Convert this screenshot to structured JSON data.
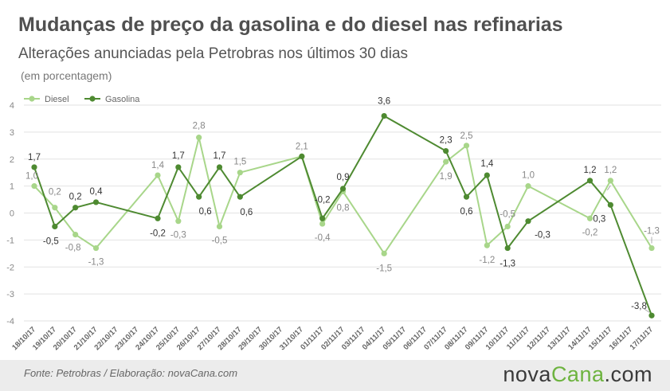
{
  "header": {
    "title": "Mudanças de preço da gasolina e do diesel nas refinarias",
    "subtitle": "Alterações anunciadas pela Petrobras nos últimos 30 dias",
    "unit": "(em porcentagem)"
  },
  "footer": {
    "source": "Fonte:  Petrobras  / Elaboração:  novaCana.com",
    "logo_main": "nova",
    "logo_accent": "Cana",
    "logo_suffix": ".com"
  },
  "colors": {
    "diesel": "#a8d68a",
    "gasolina": "#4e8a31",
    "grid": "#e2e2e2",
    "axis_text": "#888888"
  },
  "chart_data": {
    "type": "line",
    "title": "Mudanças de preço da gasolina e do diesel nas refinarias",
    "subtitle": "Alterações anunciadas pela Petrobras nos últimos 30 dias",
    "ylabel": "(em porcentagem)",
    "ylim": [
      -4,
      4
    ],
    "yticks": [
      -4,
      -3,
      -2,
      -1,
      0,
      1,
      2,
      3,
      4
    ],
    "grid": true,
    "legend": "top-left",
    "categories": [
      "18/10/17",
      "19/10/17",
      "20/10/17",
      "21/10/17",
      "22/10/17",
      "23/10/17",
      "24/10/17",
      "25/10/17",
      "26/10/17",
      "27/10/17",
      "28/10/17",
      "29/10/17",
      "30/10/17",
      "31/10/17",
      "01/11/17",
      "02/11/17",
      "03/11/17",
      "04/11/17",
      "05/11/17",
      "06/11/17",
      "07/11/17",
      "08/11/17",
      "09/11/17",
      "10/11/17",
      "11/11/17",
      "12/11/17",
      "13/11/17",
      "14/11/17",
      "15/11/17",
      "16/11/17",
      "17/11/17"
    ],
    "series": [
      {
        "name": "Diesel",
        "color": "#a8d68a",
        "points": [
          [
            0,
            1.0
          ],
          [
            1,
            0.2
          ],
          [
            2,
            -0.8
          ],
          [
            3,
            -1.3
          ],
          [
            6,
            1.4
          ],
          [
            7,
            -0.3
          ],
          [
            8,
            2.8
          ],
          [
            9,
            -0.5
          ],
          [
            10,
            1.5
          ],
          [
            13,
            2.1
          ],
          [
            14,
            -0.4
          ],
          [
            15,
            0.8
          ],
          [
            17,
            -1.5
          ],
          [
            20,
            1.9
          ],
          [
            21,
            2.5
          ],
          [
            22,
            -1.2
          ],
          [
            23,
            -0.5
          ],
          [
            24,
            1.0
          ],
          [
            27,
            -0.2
          ],
          [
            28,
            1.2
          ],
          [
            30,
            -1.3
          ]
        ],
        "labels": [
          "1,0",
          "0,2",
          "-0,8",
          "-1,3",
          "1,4",
          "-0,3",
          "2,8",
          "-0,5",
          "1,5",
          "2,1",
          "-0,4",
          "0,8",
          "-1,5",
          "1,9",
          "2,5",
          "-1,2",
          "-0,5",
          "1,0",
          "-0,2",
          "1,2",
          "-1,3"
        ]
      },
      {
        "name": "Gasolina",
        "color": "#4e8a31",
        "points": [
          [
            0,
            1.7
          ],
          [
            1,
            -0.5
          ],
          [
            2,
            0.2
          ],
          [
            3,
            0.4
          ],
          [
            6,
            -0.2
          ],
          [
            7,
            1.7
          ],
          [
            8,
            0.6
          ],
          [
            9,
            1.7
          ],
          [
            10,
            0.6
          ],
          [
            13,
            2.1
          ],
          [
            14,
            -0.2
          ],
          [
            15,
            0.9
          ],
          [
            17,
            3.6
          ],
          [
            20,
            2.3
          ],
          [
            21,
            0.6
          ],
          [
            22,
            1.4
          ],
          [
            23,
            -1.3
          ],
          [
            24,
            -0.3
          ],
          [
            27,
            1.2
          ],
          [
            28,
            0.3
          ],
          [
            30,
            -3.8
          ]
        ],
        "labels": [
          "1,7",
          "-0,5",
          "0,2",
          "0,4",
          "-0,2",
          "1,7",
          "0,6",
          "1,7",
          "0,6",
          "",
          "-0,2",
          "0,9",
          "3,6",
          "2,3",
          "0,6",
          "1,4",
          "-1,3",
          "-0,3",
          "1,2",
          "0,3",
          "-3,8"
        ]
      }
    ]
  }
}
